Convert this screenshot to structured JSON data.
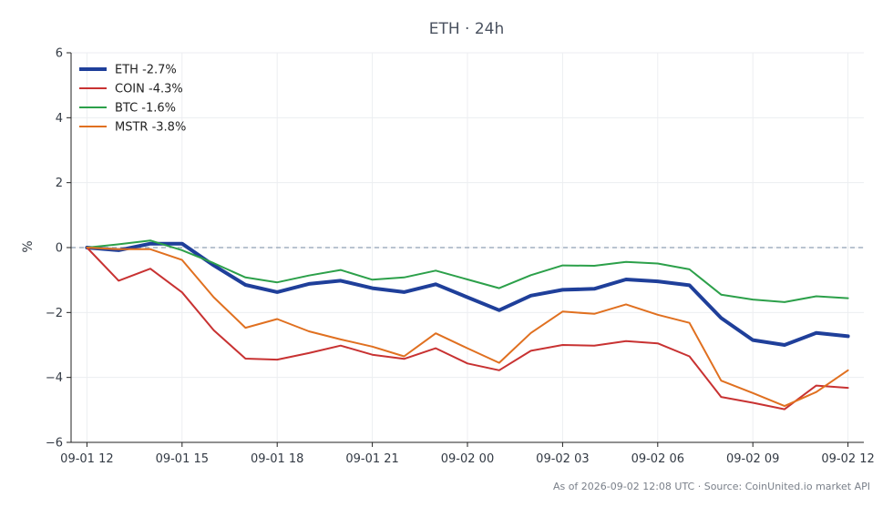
{
  "chart_data": {
    "type": "line",
    "title": "ETH · 24h",
    "xlabel": "",
    "ylabel": "%",
    "ylim": [
      -6,
      6
    ],
    "yticks": [
      6,
      4,
      2,
      0,
      -2,
      -4,
      -6
    ],
    "ytick_labels": [
      "6",
      "4",
      "2",
      "0",
      "−2",
      "−4",
      "−6"
    ],
    "xlim": [
      -0.5,
      24.5
    ],
    "xticks": [
      0,
      3,
      6,
      9,
      12,
      15,
      18,
      21,
      24
    ],
    "xtick_labels": [
      "09-01 12",
      "09-01 15",
      "09-01 18",
      "09-01 21",
      "09-02 00",
      "09-02 03",
      "09-02 06",
      "09-02 09",
      "09-02 12"
    ],
    "grid": true,
    "baseline": 0,
    "legend_position": "top-left",
    "series": [
      {
        "name": "ETH -2.7%",
        "color": "#1f3f9a",
        "width": 4,
        "x": [
          0,
          1,
          2,
          3,
          4,
          5,
          6,
          7,
          8,
          9,
          10,
          11,
          12,
          13,
          14,
          15,
          16,
          17,
          18,
          19,
          20,
          21,
          22,
          23,
          24
        ],
        "values": [
          0,
          -0.08,
          0.12,
          0.12,
          -0.55,
          -1.15,
          -1.37,
          -1.12,
          -1.02,
          -1.25,
          -1.37,
          -1.13,
          -1.53,
          -1.93,
          -1.48,
          -1.3,
          -1.27,
          -0.98,
          -1.04,
          -1.16,
          -2.17,
          -2.85,
          -3,
          -2.63,
          -2.73
        ]
      },
      {
        "name": "COIN -4.3%",
        "color": "#c83232",
        "width": 2,
        "x": [
          0,
          1,
          2,
          3,
          4,
          5,
          6,
          7,
          8,
          9,
          10,
          11,
          12,
          13,
          14,
          15,
          16,
          17,
          18,
          19,
          20,
          21,
          22,
          23,
          24
        ],
        "values": [
          0,
          -1.02,
          -0.65,
          -1.38,
          -2.55,
          -3.42,
          -3.45,
          -3.25,
          -3.02,
          -3.3,
          -3.43,
          -3.1,
          -3.57,
          -3.78,
          -3.18,
          -3,
          -3.02,
          -2.88,
          -2.95,
          -3.35,
          -4.6,
          -4.78,
          -4.98,
          -4.25,
          -4.32
        ]
      },
      {
        "name": "BTC -1.6%",
        "color": "#2ca04a",
        "width": 2,
        "x": [
          0,
          1,
          2,
          3,
          4,
          5,
          6,
          7,
          8,
          9,
          10,
          11,
          12,
          13,
          14,
          15,
          16,
          17,
          18,
          19,
          20,
          21,
          22,
          23,
          24
        ],
        "values": [
          0,
          0.1,
          0.22,
          -0.08,
          -0.48,
          -0.92,
          -1.07,
          -0.86,
          -0.69,
          -0.99,
          -0.92,
          -0.71,
          -0.98,
          -1.25,
          -0.85,
          -0.55,
          -0.56,
          -0.44,
          -0.49,
          -0.67,
          -1.45,
          -1.6,
          -1.68,
          -1.5,
          -1.56
        ]
      },
      {
        "name": "MSTR -3.8%",
        "color": "#e07020",
        "width": 2,
        "x": [
          0,
          1,
          2,
          3,
          4,
          5,
          6,
          7,
          8,
          9,
          10,
          11,
          12,
          13,
          14,
          15,
          16,
          17,
          18,
          19,
          20,
          21,
          22,
          23,
          24
        ],
        "values": [
          0,
          -0.05,
          -0.05,
          -0.38,
          -1.53,
          -2.47,
          -2.2,
          -2.58,
          -2.83,
          -3.05,
          -3.35,
          -2.64,
          -3.1,
          -3.55,
          -2.63,
          -1.97,
          -2.04,
          -1.75,
          -2.07,
          -2.32,
          -4.1,
          -4.48,
          -4.88,
          -4.45,
          -3.78
        ]
      }
    ]
  },
  "footer": {
    "text": "As of 2026-09-02 12:08 UTC · Source: CoinUnited.io market API"
  }
}
